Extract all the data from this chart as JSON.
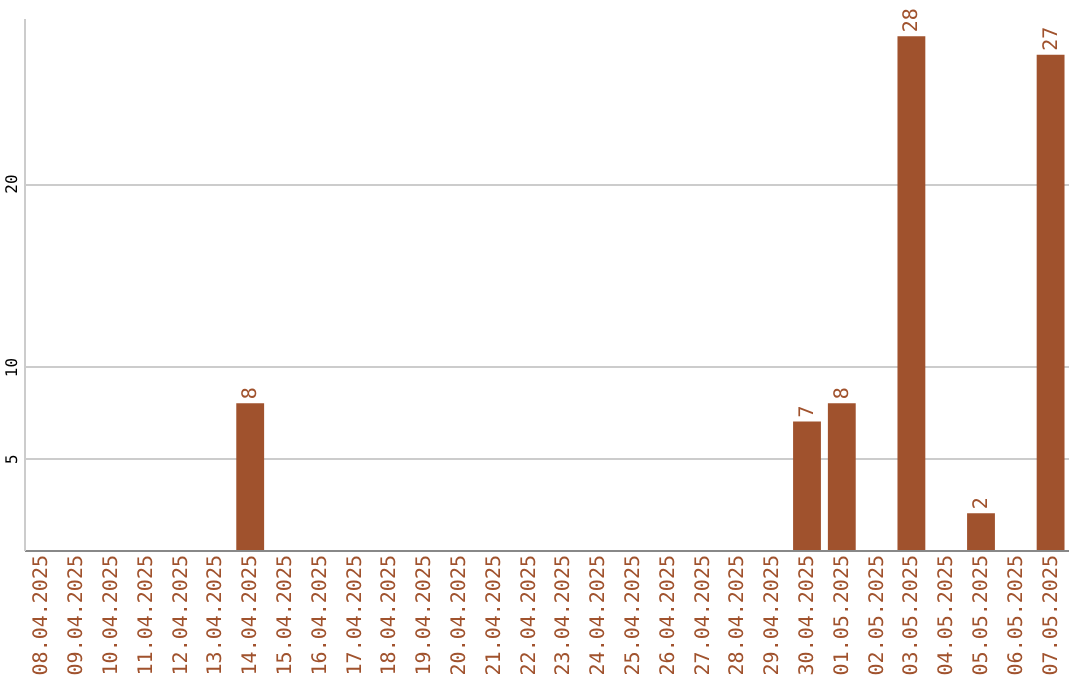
{
  "chart_data": {
    "type": "bar",
    "categories": [
      "08.04.2025",
      "09.04.2025",
      "10.04.2025",
      "11.04.2025",
      "12.04.2025",
      "13.04.2025",
      "14.04.2025",
      "15.04.2025",
      "16.04.2025",
      "17.04.2025",
      "18.04.2025",
      "19.04.2025",
      "20.04.2025",
      "21.04.2025",
      "22.04.2025",
      "23.04.2025",
      "24.04.2025",
      "25.04.2025",
      "26.04.2025",
      "27.04.2025",
      "28.04.2025",
      "29.04.2025",
      "30.04.2025",
      "01.05.2025",
      "02.05.2025",
      "03.05.2025",
      "04.05.2025",
      "05.05.2025",
      "06.05.2025",
      "07.05.2025"
    ],
    "values": [
      0,
      0,
      0,
      0,
      0,
      0,
      8,
      0,
      0,
      0,
      0,
      0,
      0,
      0,
      0,
      0,
      0,
      0,
      0,
      0,
      0,
      0,
      7,
      8,
      0,
      28,
      0,
      2,
      0,
      27
    ],
    "value_labels": [
      null,
      null,
      null,
      null,
      null,
      null,
      "8",
      null,
      null,
      null,
      null,
      null,
      null,
      null,
      null,
      null,
      null,
      null,
      null,
      null,
      null,
      null,
      "7",
      "8",
      null,
      "28",
      null,
      "2",
      null,
      "27"
    ],
    "color": "#a0522d",
    "ylim": [
      0,
      29
    ],
    "yticks": [
      5,
      10,
      20
    ],
    "grid": "y"
  }
}
